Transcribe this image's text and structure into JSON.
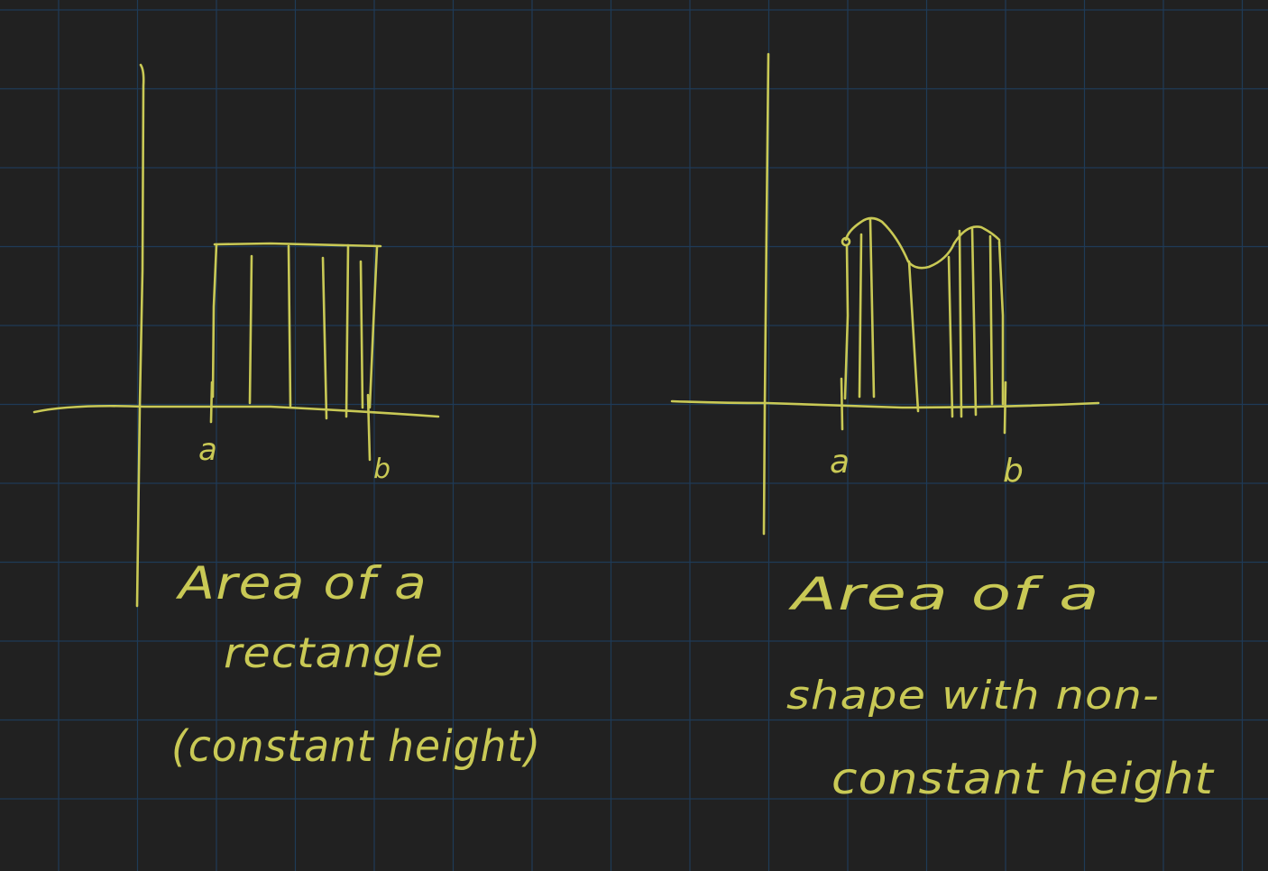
{
  "colors": {
    "background": "#212121",
    "grid": "#1f3b57",
    "ink": "#c9c955"
  },
  "left_sketch": {
    "label_a": "a",
    "label_b": "b",
    "caption_line1": "Area of a",
    "caption_line2": "rectangle",
    "caption_line3": "(constant height)"
  },
  "right_sketch": {
    "label_a": "a",
    "label_b": "b",
    "caption_line1": "Area of a",
    "caption_line2": "shape with non-",
    "caption_line3": "constant height"
  }
}
